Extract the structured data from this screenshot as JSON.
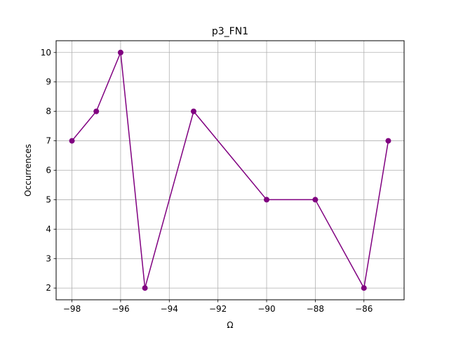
{
  "chart_data": {
    "type": "line",
    "title": "p3_FN1",
    "xlabel": "Ω",
    "ylabel": "Occurrences",
    "xlim": [
      -98.65,
      -84.35
    ],
    "ylim": [
      1.6,
      10.4
    ],
    "xticks": [
      -98,
      -96,
      -94,
      -92,
      -90,
      -88,
      -86
    ],
    "xtick_labels": [
      "−98",
      "−96",
      "−94",
      "−92",
      "−90",
      "−88",
      "−86"
    ],
    "yticks": [
      2,
      3,
      4,
      5,
      6,
      7,
      8,
      9,
      10
    ],
    "ytick_labels": [
      "2",
      "3",
      "4",
      "5",
      "6",
      "7",
      "8",
      "9",
      "10"
    ],
    "grid": true,
    "series": [
      {
        "color": "#800080",
        "marker": "circle",
        "x": [
          -98,
          -97,
          -96,
          -95,
          -93,
          -90,
          -88,
          -86,
          -85
        ],
        "y": [
          7,
          8,
          10,
          2,
          8,
          5,
          5,
          2,
          7
        ]
      }
    ]
  }
}
